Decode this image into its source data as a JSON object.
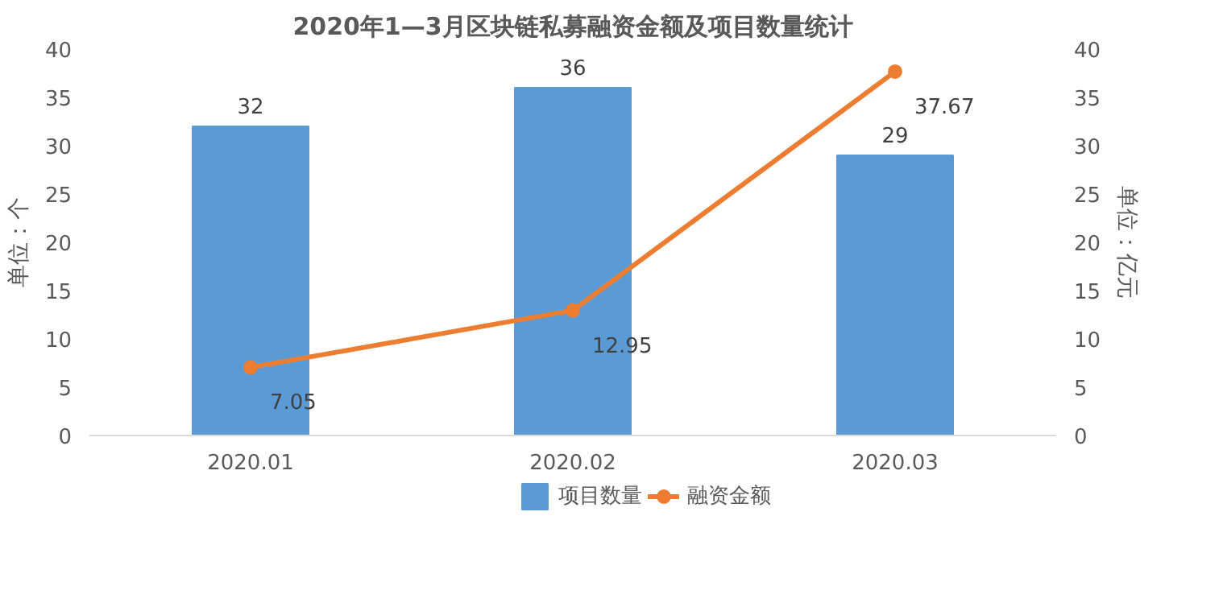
{
  "chart_data": {
    "type": "bar",
    "title": "2020年1—3月区块链私募融资金额及项目数量统计",
    "ylabel": "单位：个",
    "y2label": "单位：亿元",
    "categories": [
      "2020.01",
      "2020.02",
      "2020.03"
    ],
    "series": [
      {
        "name": "项目数量",
        "color": "#5b9bd5",
        "values": [
          32,
          36,
          29
        ]
      },
      {
        "name": "融资金额",
        "type": "line",
        "axis": "y2",
        "color": "#ed7d31",
        "values": [
          7.05,
          12.95,
          37.67
        ]
      }
    ],
    "ylim": [
      0,
      40
    ],
    "yticks": [
      0,
      5,
      10,
      15,
      20,
      25,
      30,
      35,
      40
    ],
    "y2lim": [
      0,
      40
    ],
    "y2ticks": [
      0,
      5,
      10,
      15,
      20,
      25,
      30,
      35,
      40
    ],
    "data_labels": true,
    "legend": "bottom",
    "marker": "circle",
    "line_style": "solid",
    "grid": false
  }
}
